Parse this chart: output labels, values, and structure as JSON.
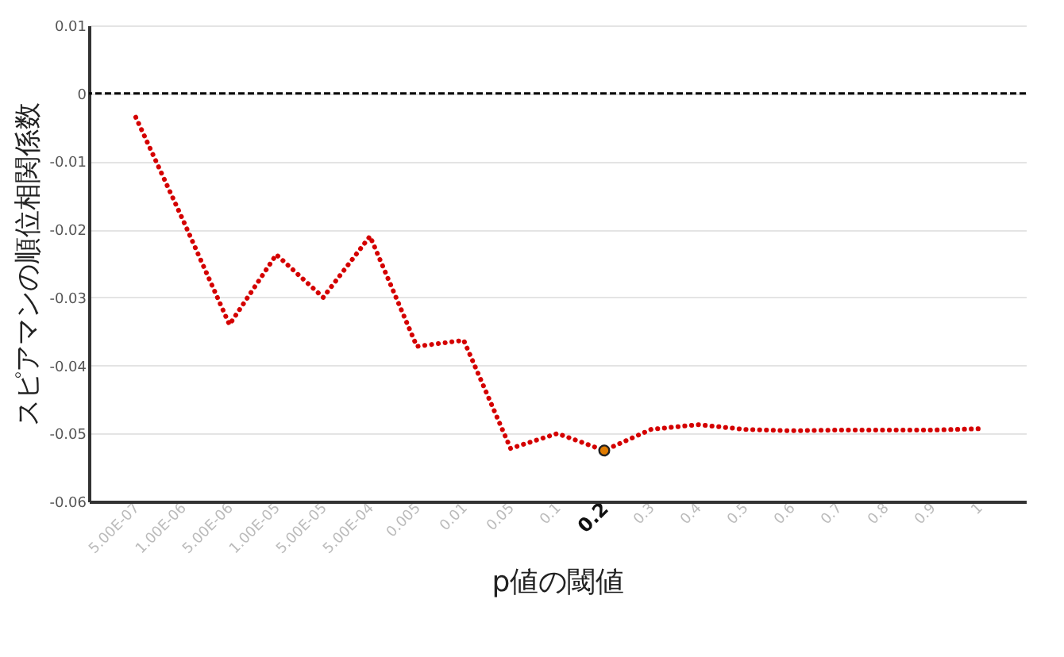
{
  "chart_data": {
    "type": "line",
    "xlabel": "p値の閾値",
    "ylabel": "スピアマンの順位相関係数",
    "categories": [
      "5.00E-07",
      "1.00E-06",
      "5.00E-06",
      "1.00E-05",
      "5.00E-05",
      "5.00E-04",
      "0.005",
      "0.01",
      "0.05",
      "0.1",
      "0.2",
      "0.3",
      "0.4",
      "0.5",
      "0.6",
      "0.7",
      "0.8",
      "0.9",
      "1"
    ],
    "series": [
      {
        "color": "#d40000",
        "values": [
          -0.0035,
          -0.0185,
          -0.034,
          -0.0237,
          -0.03,
          -0.021,
          -0.0372,
          -0.0363,
          -0.0522,
          -0.05,
          -0.0525,
          -0.0494,
          -0.0487,
          -0.0494,
          -0.0496,
          -0.0495,
          -0.0495,
          -0.0495,
          -0.0493
        ]
      },
      {
        "type": "scatter",
        "color": "#e07b00",
        "x": [
          "0.2"
        ],
        "values": [
          -0.0525
        ]
      }
    ],
    "ylim": [
      -0.06,
      0.01
    ],
    "yticks": [
      -0.06,
      -0.05,
      -0.04,
      -0.03,
      -0.02,
      -0.01,
      0,
      0.01
    ],
    "grid": "y",
    "line_style": "dotted",
    "ref_lines": [
      {
        "axis": "y",
        "value": 0,
        "color": "#000000",
        "line_style": "dashed"
      }
    ]
  }
}
